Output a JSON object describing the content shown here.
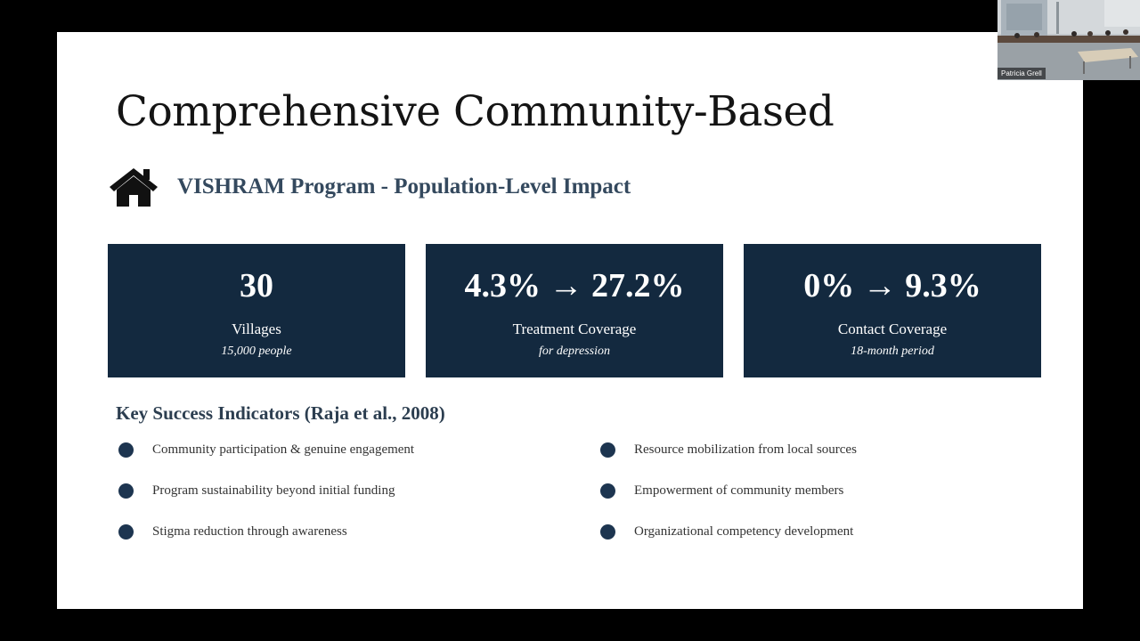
{
  "slide": {
    "title": "Comprehensive Community-Based",
    "program_icon": "home-icon",
    "program_heading": "VISHRAM Program - Population-Level Impact",
    "stats": [
      {
        "value": "30",
        "label": "Villages",
        "sub": "15,000 people"
      },
      {
        "value": "4.3% → 27.2%",
        "label": "Treatment Coverage",
        "sub": "for depression"
      },
      {
        "value": "0% → 9.3%",
        "label": "Contact Coverage",
        "sub": "18-month period"
      }
    ],
    "indicators_heading": "Key Success Indicators (Raja et al., 2008)",
    "indicators_left": [
      "Community participation & genuine engagement",
      "Program sustainability beyond initial funding",
      "Stigma reduction through awareness"
    ],
    "indicators_right": [
      "Resource mobilization from local sources",
      "Empowerment of community members",
      "Organizational competency development"
    ]
  },
  "video": {
    "participant_name": "Patricia Grell"
  },
  "colors": {
    "card_background": "#13293f",
    "heading_text": "#34495e",
    "bullet": "#1d3550"
  }
}
